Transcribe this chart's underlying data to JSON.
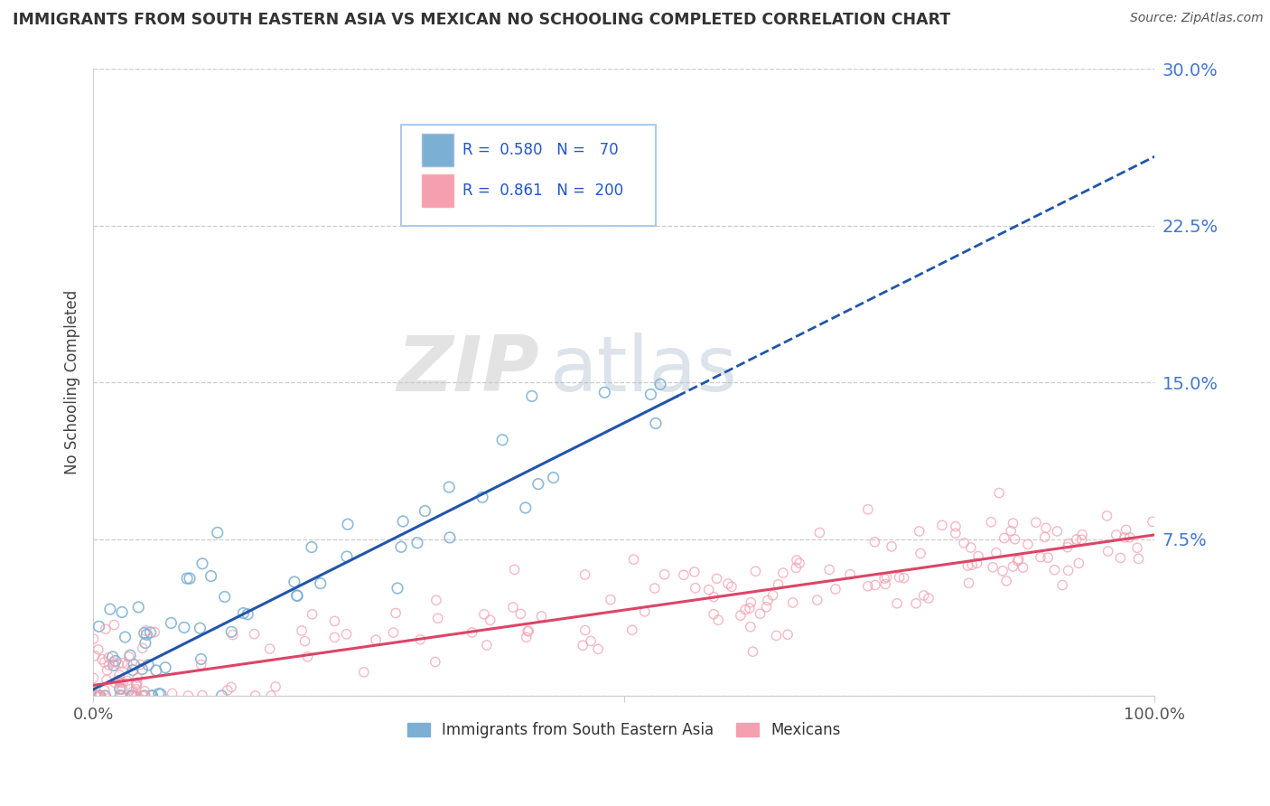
{
  "title": "IMMIGRANTS FROM SOUTH EASTERN ASIA VS MEXICAN NO SCHOOLING COMPLETED CORRELATION CHART",
  "source": "Source: ZipAtlas.com",
  "ylabel": "No Schooling Completed",
  "xlabel": "",
  "xlim": [
    0,
    100
  ],
  "ylim": [
    0,
    30
  ],
  "yticks": [
    0,
    7.5,
    15.0,
    22.5,
    30.0
  ],
  "xticks": [
    0,
    100
  ],
  "xtick_labels": [
    "0.0%",
    "100.0%"
  ],
  "ytick_labels": [
    "",
    "7.5%",
    "15.0%",
    "22.5%",
    "30.0%"
  ],
  "blue_R": 0.58,
  "blue_N": 70,
  "pink_R": 0.861,
  "pink_N": 200,
  "blue_color": "#7BAFD4",
  "pink_color": "#F4A0B0",
  "trend_blue": "#2255AA",
  "trend_pink": "#DD4466",
  "watermark_zip": "ZIP",
  "watermark_atlas": "atlas",
  "legend_label_blue": "Immigrants from South Eastern Asia",
  "legend_label_pink": "Mexicans",
  "background_color": "#FFFFFF",
  "blue_seed": 7,
  "pink_seed": 99,
  "blue_trend_m": 0.255,
  "blue_trend_b": 0.3,
  "pink_trend_m": 0.072,
  "pink_trend_b": 0.5
}
